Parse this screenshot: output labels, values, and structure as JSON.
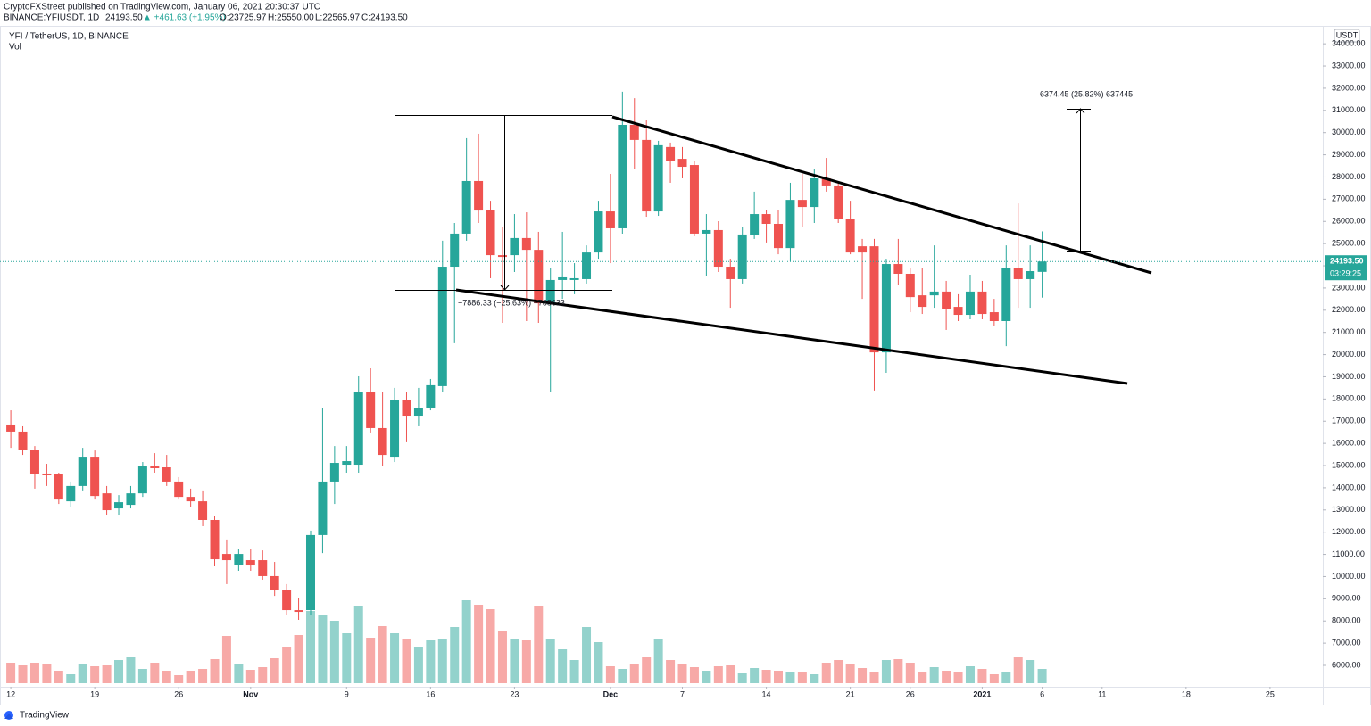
{
  "header": {
    "publisher": "CryptoFXStreet published on TradingView.com, January 06, 2021 20:30:37 UTC",
    "symbol": "BINANCE:YFIUSDT, 1D",
    "last": "24193.50",
    "change": "▲ +461.63 (+1.95%)",
    "ohlc": [
      "O:23725.97",
      "H:25550.00",
      "L:22565.97",
      "C:24193.50"
    ]
  },
  "chart_data": {
    "type": "candlestick",
    "title": "YFI / TetherUS, 1D, BINANCE",
    "volume_label": "Vol",
    "currency": "USDT",
    "up_color": "#26a69a",
    "down_color": "#ef5350",
    "volume_up_color": "#93d2cc",
    "volume_down_color": "#f7a9a7",
    "open": [
      16850,
      16530,
      15720,
      14640,
      14600,
      13390,
      14080,
      15400,
      13750,
      13070,
      13230,
      13750,
      14960,
      14920,
      14280,
      13590,
      13390,
      12550,
      11020,
      10540,
      10740,
      10740,
      10020,
      9380,
      8490,
      8490,
      11870,
      14280,
      15040,
      15040,
      18300,
      16690,
      15400,
      17970,
      17250,
      17610,
      18580,
      23960,
      25450,
      27820,
      26530,
      24480,
      24480,
      25250,
      24720,
      22310,
      23360,
      23360,
      23400,
      24600,
      26450,
      25690,
      30350,
      29670,
      26450,
      29350,
      28820,
      28540,
      25450,
      25610,
      23960,
      23400,
      25370,
      26330,
      25890,
      24800,
      26970,
      26650,
      27940,
      27620,
      26130,
      24880,
      24880,
      20100,
      24080,
      23640,
      22670,
      22670,
      22840,
      22150,
      21790,
      22840,
      21910,
      21510,
      23920,
      23400,
      23725.97
    ],
    "high": [
      17490,
      16770,
      15880,
      15080,
      14680,
      14280,
      15800,
      15680,
      14080,
      13670,
      14080,
      15160,
      15560,
      15480,
      14480,
      13960,
      13880,
      12750,
      11670,
      11260,
      11260,
      11180,
      10660,
      9660,
      9050,
      12070,
      17570,
      15880,
      15880,
      19020,
      19380,
      18300,
      18500,
      18300,
      18500,
      18900,
      25130,
      25930,
      29750,
      29950,
      26930,
      25730,
      26330,
      26410,
      25530,
      23920,
      25530,
      24120,
      24920,
      26930,
      28140,
      31840,
      31550,
      30550,
      29630,
      29550,
      29350,
      28740,
      26330,
      26010,
      24320,
      25730,
      27340,
      26530,
      26530,
      27740,
      28140,
      28340,
      28860,
      27740,
      26930,
      25210,
      25210,
      24320,
      25210,
      23920,
      23920,
      24920,
      23320,
      22720,
      23600,
      23320,
      22510,
      24920,
      26810,
      24920,
      25550
    ],
    "low": [
      15800,
      15480,
      13960,
      14080,
      13270,
      13150,
      13880,
      13470,
      12790,
      12790,
      13070,
      13590,
      14680,
      14080,
      13470,
      13150,
      12270,
      10460,
      9660,
      10260,
      10260,
      9860,
      9130,
      8250,
      8050,
      8250,
      11060,
      13270,
      14680,
      14680,
      16490,
      15000,
      15160,
      16050,
      16770,
      17490,
      18300,
      20510,
      25130,
      25930,
      23440,
      21430,
      23720,
      21510,
      21430,
      18300,
      22510,
      22720,
      23200,
      24320,
      24120,
      25450,
      28340,
      26210,
      26250,
      27740,
      27940,
      25330,
      23520,
      23720,
      22110,
      23200,
      25210,
      25050,
      24520,
      24200,
      25730,
      25930,
      27340,
      25930,
      24520,
      22510,
      18380,
      19180,
      23120,
      21910,
      21830,
      22110,
      21110,
      21510,
      21590,
      21590,
      21310,
      20380,
      22110,
      22110,
      22565.97
    ],
    "close": [
      16530,
      15720,
      14600,
      14560,
      13470,
      14080,
      15400,
      13630,
      12990,
      13350,
      13750,
      14960,
      14880,
      14280,
      13590,
      13390,
      12550,
      10780,
      10740,
      11020,
      10500,
      10020,
      9380,
      8490,
      8410,
      11870,
      14280,
      15120,
      15200,
      18300,
      16690,
      15480,
      17970,
      17250,
      17610,
      18620,
      23960,
      25450,
      27820,
      26490,
      24480,
      24400,
      25250,
      24720,
      22310,
      23360,
      23480,
      23440,
      24600,
      26450,
      25690,
      30350,
      29670,
      26450,
      29430,
      28740,
      28460,
      25450,
      25610,
      23960,
      23400,
      25410,
      26330,
      25890,
      24800,
      26970,
      26650,
      27940,
      27620,
      26130,
      24600,
      24600,
      20100,
      24080,
      23640,
      22590,
      22150,
      22840,
      22070,
      21790,
      22840,
      21830,
      21510,
      23920,
      23400,
      23760,
      24193.5
    ],
    "volume": [
      23,
      20,
      23,
      21,
      14,
      10,
      22,
      19,
      20,
      26,
      29,
      16,
      23,
      14,
      9,
      14,
      16,
      27,
      53,
      21,
      15,
      18,
      28,
      41,
      54,
      81,
      76,
      70,
      56,
      86,
      51,
      64,
      56,
      50,
      41,
      48,
      50,
      63,
      93,
      88,
      83,
      58,
      50,
      48,
      86,
      50,
      38,
      26,
      63,
      46,
      19,
      16,
      21,
      29,
      49,
      26,
      21,
      18,
      14,
      19,
      20,
      11,
      17,
      15,
      14,
      13,
      12,
      10,
      23,
      26,
      21,
      17,
      13,
      26,
      27,
      23,
      13,
      18,
      14,
      12,
      19,
      16,
      10,
      12,
      29,
      26,
      16
    ],
    "xlim": [
      -0.9,
      109.4
    ],
    "ylim": [
      5036,
      35975
    ],
    "xticks": [
      {
        "value": 0,
        "label": "12"
      },
      {
        "value": 7,
        "label": "19"
      },
      {
        "value": 14,
        "label": "26"
      },
      {
        "value": 20,
        "label": "Nov"
      },
      {
        "value": 28,
        "label": "9"
      },
      {
        "value": 35,
        "label": "16"
      },
      {
        "value": 42,
        "label": "23"
      },
      {
        "value": 50,
        "label": "Dec"
      },
      {
        "value": 56,
        "label": "7"
      },
      {
        "value": 63,
        "label": "14"
      },
      {
        "value": 70,
        "label": "21"
      },
      {
        "value": 75,
        "label": "26"
      },
      {
        "value": 81,
        "label": "2021"
      },
      {
        "value": 86,
        "label": "6"
      },
      {
        "value": 91,
        "label": "11"
      },
      {
        "value": 98,
        "label": "18"
      },
      {
        "value": 105,
        "label": "25"
      }
    ],
    "yticks": [
      {
        "value": 6000,
        "label": "6000.00"
      },
      {
        "value": 7000,
        "label": "7000.00"
      },
      {
        "value": 8000,
        "label": "8000.00"
      },
      {
        "value": 9000,
        "label": "9000.00"
      },
      {
        "value": 10000,
        "label": "10000.00"
      },
      {
        "value": 11000,
        "label": "11000.00"
      },
      {
        "value": 12000,
        "label": "12000.00"
      },
      {
        "value": 13000,
        "label": "13000.00"
      },
      {
        "value": 14000,
        "label": "14000.00"
      },
      {
        "value": 15000,
        "label": "15000.00"
      },
      {
        "value": 16000,
        "label": "16000.00"
      },
      {
        "value": 17000,
        "label": "17000.00"
      },
      {
        "value": 18000,
        "label": "18000.00"
      },
      {
        "value": 19000,
        "label": "19000.00"
      },
      {
        "value": 20000,
        "label": "20000.00"
      },
      {
        "value": 21000,
        "label": "21000.00"
      },
      {
        "value": 22000,
        "label": "22000.00"
      },
      {
        "value": 23000,
        "label": "23000.00"
      },
      {
        "value": 24000,
        "label": "24000.00"
      },
      {
        "value": 25000,
        "label": "25000.00"
      },
      {
        "value": 26000,
        "label": "26000.00"
      },
      {
        "value": 27000,
        "label": "27000.00"
      },
      {
        "value": 28000,
        "label": "28000.00"
      },
      {
        "value": 29000,
        "label": "29000.00"
      },
      {
        "value": 30000,
        "label": "30000.00"
      },
      {
        "value": 31000,
        "label": "31000.00"
      },
      {
        "value": 32000,
        "label": "32000.00"
      },
      {
        "value": 33000,
        "label": "33000.00"
      },
      {
        "value": 34000,
        "label": "34000.00"
      }
    ],
    "price_label": {
      "value": 24193.5,
      "label": "24193.50"
    },
    "countdown": "03:29:25",
    "annotations": [
      "−7886.33 (−25.63%) −788633",
      "6374.45 (25.82%) 637445"
    ],
    "brand": "TradingView"
  }
}
